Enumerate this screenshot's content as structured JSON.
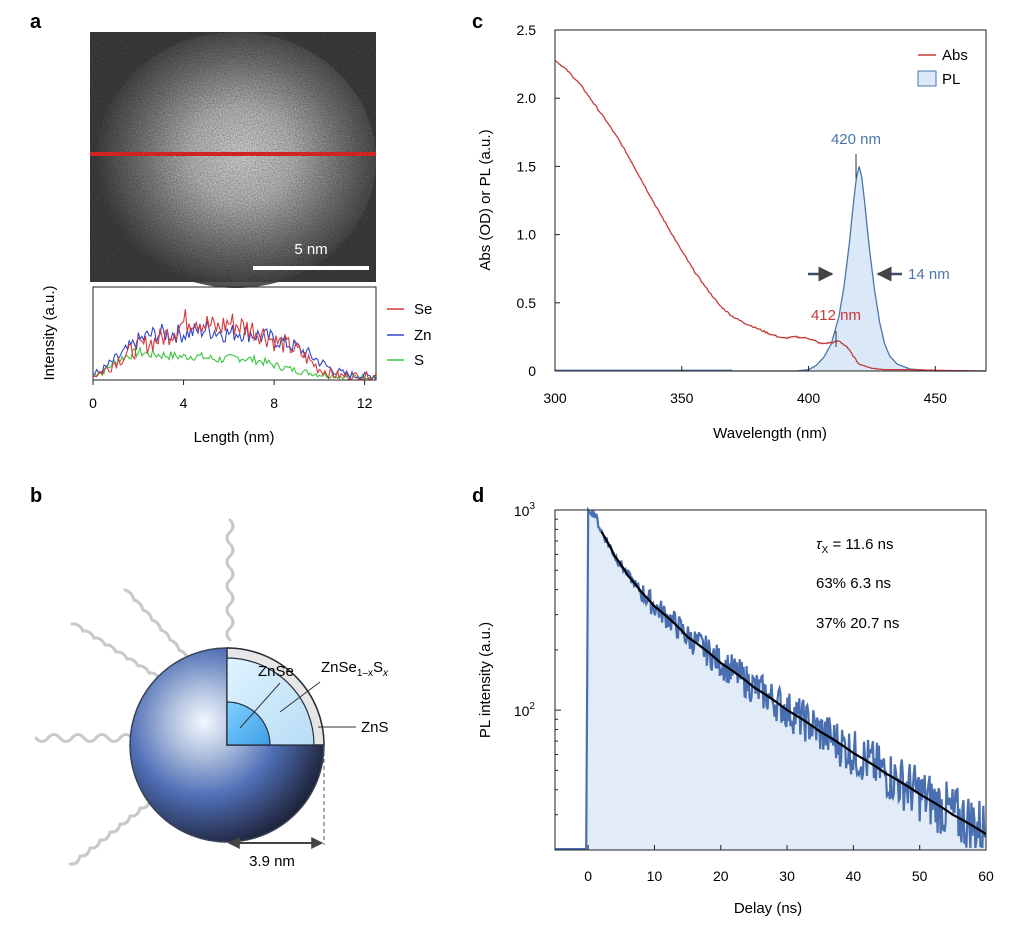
{
  "panel_labels": {
    "a": "a",
    "b": "b",
    "c": "c",
    "d": "d"
  },
  "panel_a": {
    "scale_bar_label": "5 nm",
    "legend": [
      "Se",
      "Zn",
      "S"
    ]
  },
  "panel_b": {
    "labels": {
      "core": "ZnSe",
      "middle_base": "ZnSe",
      "middle_sub": "1–x",
      "middle_s": "S",
      "middle_x": "x",
      "shell": "ZnS",
      "radius": "3.9 nm"
    }
  },
  "panel_d_annotations": {
    "tau_symbol": "τ",
    "tau_sub": "X",
    "tau_value": " = 11.6 ns",
    "component1": "63% 6.3 ns",
    "component2": "37% 20.7 ns"
  },
  "colors": {
    "se": "#d23a3a",
    "zn": "#3046c8",
    "s": "#3cc43c",
    "abs": "#c73a3a",
    "pl": "#4a76ad",
    "pl_fill": "#dbe8f7",
    "decay": "#4a6fb0",
    "fit": "#000000",
    "scan_line": "#d02424"
  },
  "chart_data": [
    {
      "id": "a",
      "type": "line",
      "title": "",
      "xlabel": "Length (nm)",
      "ylabel": "Intensity (a.u.)",
      "xlim": [
        0,
        12.5
      ],
      "ylim": [
        0,
        1
      ],
      "xticks": [
        0,
        4,
        8,
        12
      ],
      "series": [
        {
          "name": "Se",
          "x": [
            0,
            0.5,
            1,
            1.5,
            2,
            2.5,
            3,
            3.5,
            4,
            4.5,
            5,
            5.5,
            6,
            6.5,
            7,
            7.5,
            8,
            8.5,
            9,
            9.5,
            10,
            10.5,
            11,
            11.5,
            12,
            12.5
          ],
          "values": [
            0.05,
            0.1,
            0.2,
            0.28,
            0.35,
            0.4,
            0.45,
            0.52,
            0.62,
            0.68,
            0.6,
            0.55,
            0.62,
            0.58,
            0.55,
            0.5,
            0.42,
            0.38,
            0.32,
            0.22,
            0.12,
            0.07,
            0.04,
            0.04,
            0.04,
            0.04
          ]
        },
        {
          "name": "Zn",
          "x": [
            0,
            0.5,
            1,
            1.5,
            2,
            2.5,
            3,
            3.5,
            4,
            4.5,
            5,
            5.5,
            6,
            6.5,
            7,
            7.5,
            8,
            8.5,
            9,
            9.5,
            10,
            10.5,
            11,
            11.5,
            12,
            12.5
          ],
          "values": [
            0.05,
            0.12,
            0.22,
            0.32,
            0.42,
            0.48,
            0.5,
            0.5,
            0.5,
            0.52,
            0.55,
            0.52,
            0.5,
            0.52,
            0.5,
            0.47,
            0.44,
            0.4,
            0.35,
            0.28,
            0.2,
            0.12,
            0.07,
            0.05,
            0.04,
            0.04
          ]
        },
        {
          "name": "S",
          "x": [
            0,
            0.5,
            1,
            1.5,
            2,
            2.5,
            3,
            3.5,
            4,
            4.5,
            5,
            5.5,
            6,
            6.5,
            7,
            7.5,
            8,
            8.5,
            9,
            9.5,
            10,
            10.5,
            11,
            11.5,
            12,
            12.5
          ],
          "values": [
            0.05,
            0.1,
            0.2,
            0.26,
            0.3,
            0.28,
            0.27,
            0.26,
            0.25,
            0.26,
            0.24,
            0.22,
            0.23,
            0.24,
            0.22,
            0.2,
            0.16,
            0.13,
            0.1,
            0.08,
            0.06,
            0.05,
            0.04,
            0.04,
            0.04,
            0.04
          ]
        }
      ]
    },
    {
      "id": "c",
      "type": "line",
      "title": "",
      "xlabel": "Wavelength (nm)",
      "ylabel": "Abs (OD) or PL (a.u.)",
      "xlim": [
        300,
        470
      ],
      "ylim": [
        0,
        2.5
      ],
      "xticks": [
        300,
        350,
        400,
        450
      ],
      "yticks": [
        0,
        0.5,
        1.0,
        1.5,
        2.0,
        2.5
      ],
      "ytick_labels": [
        "0",
        "0.5",
        "1.0",
        "1.5",
        "2.0",
        "2.5"
      ],
      "legend": [
        "Abs",
        "PL"
      ],
      "legend_position": "top-right",
      "annotations": [
        "420 nm",
        "14 nm",
        "412 nm"
      ],
      "series": [
        {
          "name": "Abs",
          "x": [
            300,
            305,
            310,
            315,
            320,
            325,
            330,
            335,
            340,
            345,
            350,
            355,
            360,
            365,
            370,
            375,
            380,
            385,
            390,
            395,
            400,
            405,
            410,
            412,
            415,
            418,
            420,
            425,
            430,
            440,
            450,
            470
          ],
          "values": [
            2.28,
            2.2,
            2.1,
            1.97,
            1.84,
            1.7,
            1.54,
            1.37,
            1.2,
            1.04,
            0.88,
            0.73,
            0.6,
            0.48,
            0.4,
            0.35,
            0.31,
            0.27,
            0.24,
            0.25,
            0.24,
            0.2,
            0.21,
            0.22,
            0.18,
            0.1,
            0.05,
            0.02,
            0.01,
            0.01,
            0.005,
            0.0
          ]
        },
        {
          "name": "PL",
          "x": [
            300,
            380,
            395,
            400,
            403,
            406,
            409,
            412,
            414,
            416,
            418,
            419,
            420,
            421,
            422,
            424,
            426,
            428,
            430,
            432,
            435,
            440,
            450,
            470
          ],
          "values": [
            0.0,
            0.0,
            0.0,
            0.01,
            0.04,
            0.1,
            0.2,
            0.4,
            0.62,
            0.92,
            1.28,
            1.43,
            1.5,
            1.42,
            1.26,
            0.9,
            0.6,
            0.36,
            0.2,
            0.11,
            0.05,
            0.015,
            0.0,
            0.0
          ]
        }
      ]
    },
    {
      "id": "d",
      "type": "line",
      "title": "",
      "xlabel": "Delay (ns)",
      "ylabel": "PL intensity (a.u.)",
      "xlim": [
        -5,
        60
      ],
      "ylim": [
        20,
        1000
      ],
      "yscale": "log",
      "xticks": [
        0,
        10,
        20,
        30,
        40,
        50,
        60
      ],
      "yticks": [
        100,
        1000
      ],
      "ytick_labels": [
        {
          "base": "10",
          "exp": "2"
        },
        {
          "base": "10",
          "exp": "3"
        }
      ],
      "series": [
        {
          "name": "PL decay",
          "x": [
            -5,
            -0.3,
            0,
            0.5,
            1,
            2,
            4,
            6,
            8,
            10,
            15,
            20,
            25,
            30,
            35,
            40,
            45,
            50,
            55,
            60
          ],
          "values": [
            20,
            20,
            1000,
            1000,
            950,
            780,
            590,
            470,
            390,
            330,
            232,
            172,
            130,
            100,
            78,
            61,
            48,
            38,
            30,
            25
          ]
        },
        {
          "name": "biexponential fit",
          "x": [
            2,
            4,
            6,
            8,
            10,
            15,
            20,
            25,
            30,
            35,
            40,
            45,
            50,
            55,
            60
          ],
          "values": [
            780,
            590,
            470,
            390,
            330,
            232,
            172,
            130,
            100,
            78,
            61,
            48,
            38,
            30,
            24
          ]
        }
      ]
    }
  ]
}
